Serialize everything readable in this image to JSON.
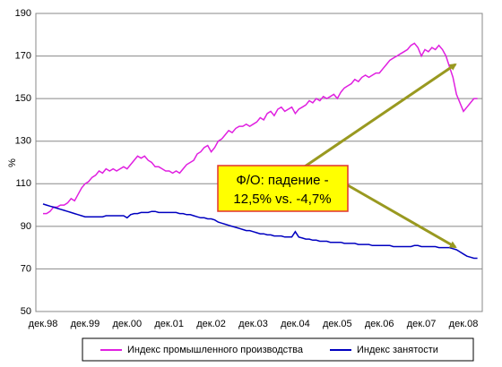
{
  "chart_data": {
    "type": "line",
    "y_label": "%",
    "categories": [
      "дек.98",
      null,
      null,
      null,
      null,
      null,
      null,
      null,
      null,
      null,
      null,
      null,
      "дек.99",
      null,
      null,
      null,
      null,
      null,
      null,
      null,
      null,
      null,
      null,
      null,
      "дек.00",
      null,
      null,
      null,
      null,
      null,
      null,
      null,
      null,
      null,
      null,
      null,
      "дек.01",
      null,
      null,
      null,
      null,
      null,
      null,
      null,
      null,
      null,
      null,
      null,
      "дек.02",
      null,
      null,
      null,
      null,
      null,
      null,
      null,
      null,
      null,
      null,
      null,
      "дек.03",
      null,
      null,
      null,
      null,
      null,
      null,
      null,
      null,
      null,
      null,
      null,
      "дек.04",
      null,
      null,
      null,
      null,
      null,
      null,
      null,
      null,
      null,
      null,
      null,
      "дек.05",
      null,
      null,
      null,
      null,
      null,
      null,
      null,
      null,
      null,
      null,
      null,
      "дек.06",
      null,
      null,
      null,
      null,
      null,
      null,
      null,
      null,
      null,
      null,
      null,
      "дек.07",
      null,
      null,
      null,
      null,
      null,
      null,
      null,
      null,
      null,
      null,
      null,
      "дек.08",
      null,
      null,
      null,
      null
    ],
    "series": [
      {
        "name": "Индекс промышленного производства",
        "color": "#e020e0",
        "values": [
          96,
          96,
          97,
          99,
          99,
          100,
          100,
          101,
          103,
          102,
          105,
          108,
          110,
          111,
          113,
          114,
          116,
          115,
          117,
          116,
          117,
          116,
          117,
          118,
          117,
          119,
          121,
          123,
          122,
          123,
          121,
          120,
          118,
          118,
          117,
          116,
          116,
          115,
          116,
          115,
          117,
          119,
          120,
          121,
          124,
          125,
          127,
          128,
          125,
          127,
          130,
          131,
          133,
          135,
          134,
          136,
          137,
          137,
          138,
          137,
          138,
          139,
          141,
          140,
          143,
          144,
          142,
          145,
          146,
          144,
          145,
          146,
          143,
          145,
          146,
          147,
          149,
          148,
          150,
          149,
          151,
          150,
          151,
          152,
          150,
          153,
          155,
          156,
          157,
          159,
          158,
          160,
          161,
          160,
          161,
          162,
          162,
          164,
          166,
          168,
          169,
          170,
          171,
          172,
          173,
          175,
          176,
          174,
          170,
          173,
          172,
          174,
          173,
          175,
          173,
          170,
          165,
          160,
          152,
          148,
          144,
          146,
          148,
          150,
          150
        ]
      },
      {
        "name": "Индекс занятости",
        "color": "#0000c0",
        "values": [
          100.5,
          100,
          99.5,
          99,
          98.5,
          98,
          97.5,
          97,
          96.5,
          96,
          95.5,
          95,
          94.5,
          94.5,
          94.5,
          94.5,
          94.5,
          94.5,
          95,
          95,
          95,
          95,
          95,
          95,
          94,
          95.5,
          96,
          96,
          96.5,
          96.5,
          96.5,
          97,
          97,
          96.5,
          96.5,
          96.5,
          96.5,
          96.5,
          96.5,
          96,
          96,
          95.5,
          95.5,
          95,
          94.5,
          94,
          94,
          93.5,
          93.5,
          93,
          92,
          91.5,
          91,
          90.5,
          90,
          89.5,
          89,
          88.5,
          88,
          88,
          87.5,
          87,
          86.5,
          86.5,
          86,
          86,
          85.5,
          85.5,
          85.5,
          85,
          85,
          85,
          87.5,
          85,
          84.5,
          84,
          84,
          83.5,
          83.5,
          83,
          83,
          83,
          82.5,
          82.5,
          82.5,
          82.5,
          82,
          82,
          82,
          82,
          81.5,
          81.5,
          81.5,
          81.5,
          81,
          81,
          81,
          81,
          81,
          81,
          80.5,
          80.5,
          80.5,
          80.5,
          80.5,
          80.5,
          81,
          81,
          80.5,
          80.5,
          80.5,
          80.5,
          80.5,
          80,
          80,
          80,
          80,
          79.5,
          79,
          78,
          77,
          76,
          75.5,
          75,
          75
        ]
      }
    ],
    "ylim": [
      50,
      190
    ],
    "yticks": [
      50,
      70,
      90,
      110,
      130,
      150,
      170,
      190
    ],
    "grid": true,
    "legend": "bottom",
    "annotation": [
      "Ф/О: падение -",
      "12,5% vs. -4,7%"
    ]
  }
}
